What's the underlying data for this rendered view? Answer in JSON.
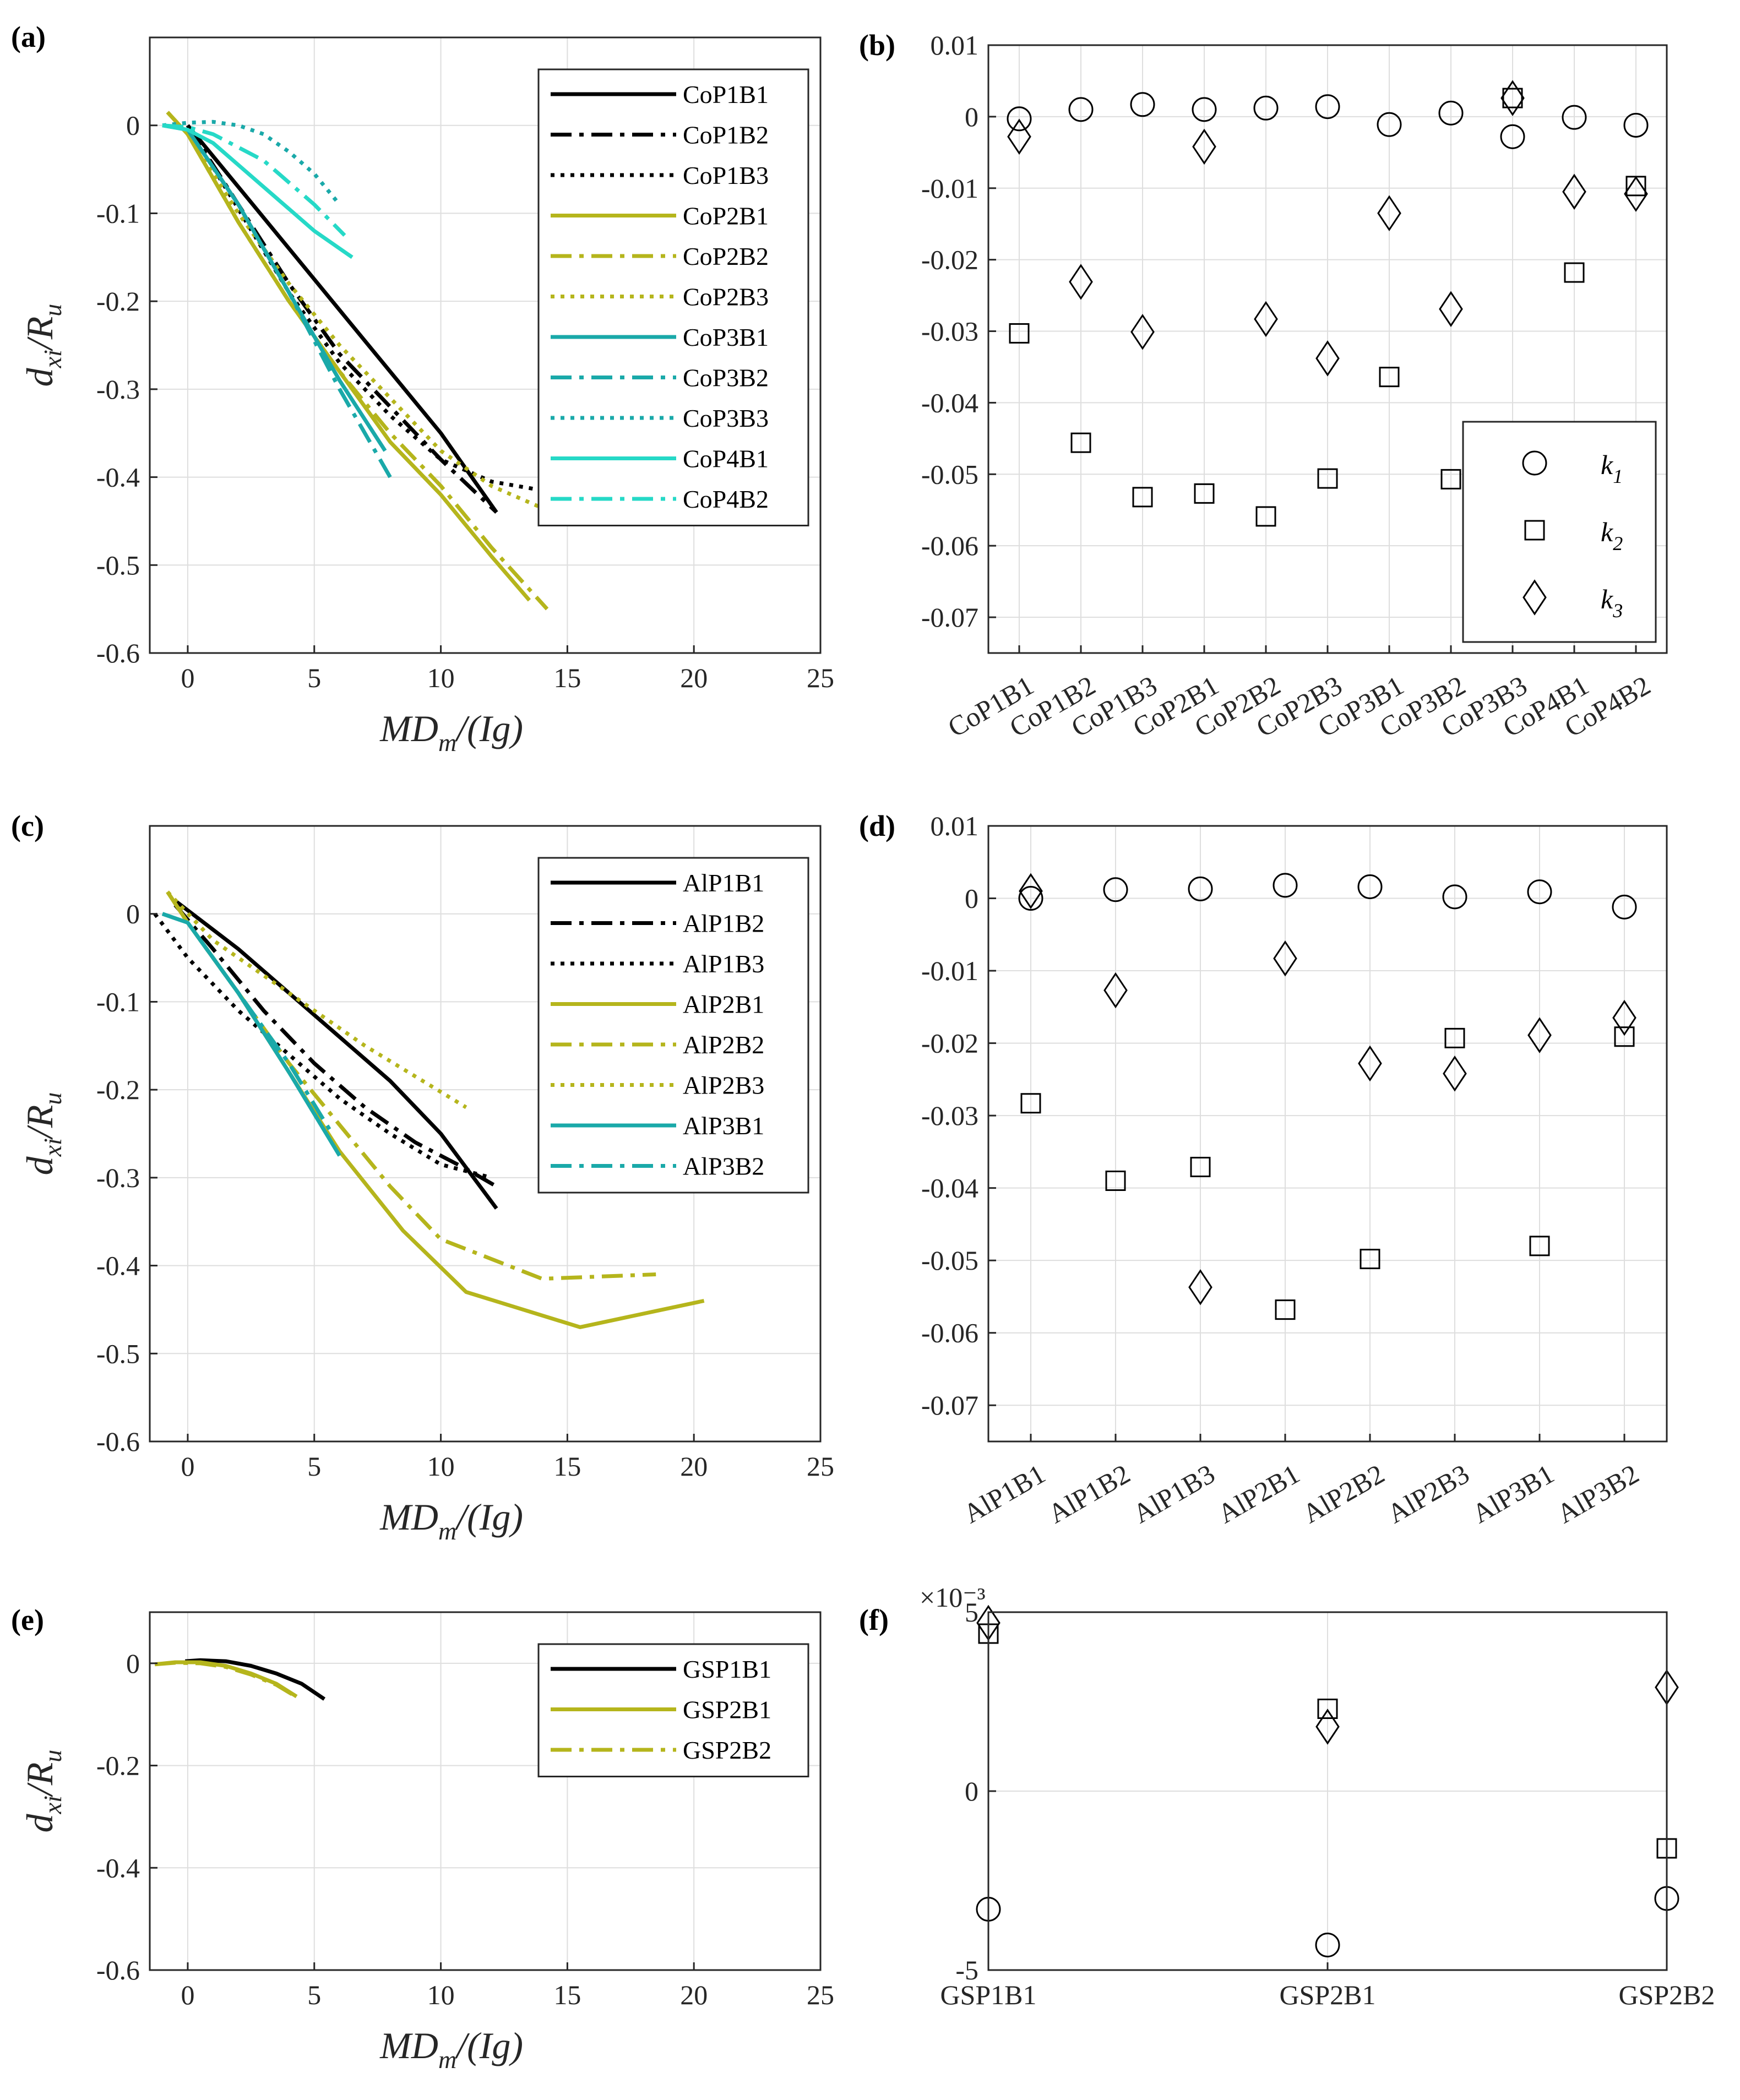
{
  "figure": {
    "panel_labels": [
      "(a)",
      "(b)",
      "(c)",
      "(d)",
      "(e)",
      "(f)"
    ],
    "y_label_left": {
      "main": "d",
      "sub": "xi",
      "sep": "/R",
      "sub2": "u"
    },
    "x_label_left": {
      "main": "MD",
      "sub": "m",
      "rest": "/(Ig)"
    },
    "sci_exponent_label": "×10⁻³"
  },
  "colors": {
    "black": "#000000",
    "olive": "#b5b51c",
    "teal": "#1aa9a9",
    "cyan": "#26d9c7",
    "grid": "#dedede",
    "axis": "#262626"
  },
  "chart_data": [
    {
      "id": "a",
      "type": "line",
      "title": "(a)",
      "xlabel": "MD_m/(Ig)",
      "ylabel": "d_xi/R_u",
      "xlim": [
        -1.5,
        25
      ],
      "ylim": [
        -0.6,
        0.1
      ],
      "xticks": [
        0,
        5,
        10,
        15,
        20,
        25
      ],
      "yticks": [
        0,
        -0.1,
        -0.2,
        -0.3,
        -0.4,
        -0.5,
        -0.6
      ],
      "grid": true,
      "legend_position": "top-right",
      "series": [
        {
          "name": "CoP1B1",
          "color": "black",
          "dash": "solid",
          "x": [
            0,
            2,
            4,
            6,
            8,
            10,
            12.2
          ],
          "y": [
            0,
            -0.07,
            -0.14,
            -0.21,
            -0.28,
            -0.35,
            -0.44
          ]
        },
        {
          "name": "CoP1B2",
          "color": "black",
          "dash": "dashdot",
          "x": [
            0,
            2,
            4,
            6,
            8,
            10,
            12.2
          ],
          "y": [
            0,
            -0.09,
            -0.18,
            -0.26,
            -0.32,
            -0.38,
            -0.44
          ]
        },
        {
          "name": "CoP1B3",
          "color": "black",
          "dash": "dotted",
          "x": [
            0,
            2,
            4,
            6,
            8,
            10,
            12,
            14
          ],
          "y": [
            0,
            -0.095,
            -0.19,
            -0.27,
            -0.33,
            -0.38,
            -0.405,
            -0.415
          ]
        },
        {
          "name": "CoP2B1",
          "color": "olive",
          "dash": "solid",
          "x": [
            -0.8,
            0,
            2,
            4,
            6,
            8,
            10,
            12,
            13.5
          ],
          "y": [
            0.015,
            -0.01,
            -0.11,
            -0.2,
            -0.28,
            -0.36,
            -0.42,
            -0.49,
            -0.54
          ]
        },
        {
          "name": "CoP2B2",
          "color": "olive",
          "dash": "dashdot",
          "x": [
            -0.8,
            0,
            2,
            4,
            6,
            8,
            10,
            12,
            14.2
          ],
          "y": [
            0.015,
            -0.01,
            -0.11,
            -0.2,
            -0.28,
            -0.35,
            -0.41,
            -0.48,
            -0.55
          ]
        },
        {
          "name": "CoP2B3",
          "color": "olive",
          "dash": "dotted",
          "x": [
            -0.8,
            0,
            2,
            4,
            6,
            8,
            10,
            12,
            14
          ],
          "y": [
            0.015,
            -0.01,
            -0.1,
            -0.18,
            -0.25,
            -0.31,
            -0.37,
            -0.41,
            -0.435
          ]
        },
        {
          "name": "CoP3B1",
          "color": "teal",
          "dash": "solid",
          "x": [
            -1,
            0,
            2,
            4,
            6,
            7.8
          ],
          "y": [
            0,
            -0.005,
            -0.09,
            -0.19,
            -0.29,
            -0.37
          ]
        },
        {
          "name": "CoP3B2",
          "color": "teal",
          "dash": "dashdot",
          "x": [
            -1,
            0,
            2,
            4,
            6,
            8
          ],
          "y": [
            0,
            -0.005,
            -0.09,
            -0.19,
            -0.3,
            -0.4
          ]
        },
        {
          "name": "CoP3B3",
          "color": "teal",
          "dash": "dotted",
          "x": [
            -1,
            0,
            1,
            2,
            3,
            4,
            5,
            6
          ],
          "y": [
            0,
            0.003,
            0.004,
            0,
            -0.01,
            -0.03,
            -0.055,
            -0.09
          ]
        },
        {
          "name": "CoP4B1",
          "color": "cyan",
          "dash": "solid",
          "x": [
            -1,
            0,
            1,
            2,
            3,
            4,
            5,
            6.5
          ],
          "y": [
            0,
            -0.005,
            -0.02,
            -0.045,
            -0.07,
            -0.095,
            -0.12,
            -0.15
          ]
        },
        {
          "name": "CoP4B2",
          "color": "cyan",
          "dash": "dashdot",
          "x": [
            -1,
            0,
            1,
            2,
            3,
            4,
            5,
            6.2
          ],
          "y": [
            0,
            -0.002,
            -0.01,
            -0.025,
            -0.04,
            -0.065,
            -0.09,
            -0.125
          ]
        }
      ]
    },
    {
      "id": "b",
      "type": "scatter",
      "title": "(b)",
      "ylim": [
        -0.075,
        0.01
      ],
      "yticks": [
        0.01,
        0,
        -0.01,
        -0.02,
        -0.03,
        -0.04,
        -0.05,
        -0.06,
        -0.07
      ],
      "ytick_labels": [
        "0.01",
        "0",
        "-0.01",
        "-0.02",
        "-0.03",
        "-0.04",
        "-0.05",
        "-0.06",
        "-0.07"
      ],
      "categories": [
        "CoP1B1",
        "CoP1B2",
        "CoP1B3",
        "CoP2B1",
        "CoP2B2",
        "CoP2B3",
        "CoP3B1",
        "CoP3B2",
        "CoP3B3",
        "CoP4B1",
        "CoP4B2"
      ],
      "grid": true,
      "legend_position": "bottom-right",
      "series": [
        {
          "name": "k",
          "sub": "1",
          "marker": "circle",
          "values": [
            -0.0003,
            0.001,
            0.0017,
            0.001,
            0.0012,
            0.0014,
            -0.0011,
            0.0005,
            -0.0028,
            -0.0001,
            -0.0012
          ]
        },
        {
          "name": "k",
          "sub": "2",
          "marker": "square",
          "values": [
            -0.0303,
            -0.0456,
            -0.0532,
            -0.0527,
            -0.0559,
            -0.0506,
            -0.0364,
            -0.0507,
            0.0026,
            -0.0218,
            -0.0097
          ]
        },
        {
          "name": "k",
          "sub": "3",
          "marker": "diamond",
          "values": [
            -0.0028,
            -0.0231,
            -0.0301,
            -0.0042,
            -0.0283,
            -0.0338,
            -0.0135,
            -0.0269,
            0.0026,
            -0.0105,
            -0.0108
          ]
        }
      ]
    },
    {
      "id": "c",
      "type": "line",
      "title": "(c)",
      "xlabel": "MD_m/(Ig)",
      "ylabel": "d_xi/R_u",
      "xlim": [
        -1.5,
        25
      ],
      "ylim": [
        -0.6,
        0.1
      ],
      "xticks": [
        0,
        5,
        10,
        15,
        20,
        25
      ],
      "yticks": [
        0,
        -0.1,
        -0.2,
        -0.3,
        -0.4,
        -0.5,
        -0.6
      ],
      "grid": true,
      "legend_position": "top-right",
      "series": [
        {
          "name": "AlP1B1",
          "color": "black",
          "dash": "solid",
          "x": [
            -0.5,
            2,
            4,
            6,
            8,
            10,
            12.2
          ],
          "y": [
            0.015,
            -0.04,
            -0.09,
            -0.14,
            -0.19,
            -0.25,
            -0.335
          ]
        },
        {
          "name": "AlP1B2",
          "color": "black",
          "dash": "dashdot",
          "x": [
            -0.5,
            1,
            3,
            5,
            7,
            9,
            11,
            12.2
          ],
          "y": [
            0.01,
            -0.04,
            -0.11,
            -0.17,
            -0.22,
            -0.26,
            -0.29,
            -0.31
          ]
        },
        {
          "name": "AlP1B3",
          "color": "black",
          "dash": "dotted",
          "x": [
            -1.3,
            0,
            2,
            4,
            6,
            8,
            10,
            12
          ],
          "y": [
            0,
            -0.05,
            -0.11,
            -0.16,
            -0.21,
            -0.25,
            -0.285,
            -0.3
          ]
        },
        {
          "name": "AlP2B1",
          "color": "olive",
          "dash": "solid",
          "x": [
            -0.8,
            0,
            2,
            4,
            6,
            8.5,
            11,
            15.5,
            20.4
          ],
          "y": [
            0.025,
            -0.01,
            -0.09,
            -0.18,
            -0.27,
            -0.36,
            -0.43,
            -0.47,
            -0.44
          ]
        },
        {
          "name": "AlP2B2",
          "color": "olive",
          "dash": "dashdot",
          "x": [
            -0.8,
            0,
            2,
            4,
            6,
            8,
            10,
            14,
            18.5
          ],
          "y": [
            0.025,
            -0.01,
            -0.09,
            -0.17,
            -0.24,
            -0.31,
            -0.37,
            -0.415,
            -0.41
          ]
        },
        {
          "name": "AlP2B3",
          "color": "olive",
          "dash": "dotted",
          "x": [
            -0.8,
            1,
            3,
            5,
            7,
            9,
            11
          ],
          "y": [
            0.025,
            -0.03,
            -0.07,
            -0.11,
            -0.15,
            -0.185,
            -0.22
          ]
        },
        {
          "name": "AlP3B1",
          "color": "teal",
          "dash": "solid",
          "x": [
            -1,
            0,
            2,
            4,
            6
          ],
          "y": [
            0,
            -0.01,
            -0.09,
            -0.18,
            -0.275
          ]
        },
        {
          "name": "AlP3B2",
          "color": "teal",
          "dash": "dashdot",
          "x": [
            -1,
            0,
            2,
            4,
            5.6
          ],
          "y": [
            0,
            -0.01,
            -0.09,
            -0.17,
            -0.245
          ]
        }
      ]
    },
    {
      "id": "d",
      "type": "scatter",
      "title": "(d)",
      "ylim": [
        -0.075,
        0.01
      ],
      "yticks": [
        0.01,
        0,
        -0.01,
        -0.02,
        -0.03,
        -0.04,
        -0.05,
        -0.06,
        -0.07
      ],
      "ytick_labels": [
        "0.01",
        "0",
        "-0.01",
        "-0.02",
        "-0.03",
        "-0.04",
        "-0.05",
        "-0.06",
        "-0.07"
      ],
      "categories": [
        "AlP1B1",
        "AlP1B2",
        "AlP1B3",
        "AlP2B1",
        "AlP2B2",
        "AlP2B3",
        "AlP3B1",
        "AlP3B2"
      ],
      "grid": true,
      "series": [
        {
          "name": "k",
          "sub": "1",
          "marker": "circle",
          "values": [
            0,
            0.0012,
            0.0013,
            0.0018,
            0.0016,
            0.0002,
            0.0009,
            -0.0012
          ]
        },
        {
          "name": "k",
          "sub": "2",
          "marker": "square",
          "values": [
            -0.0283,
            -0.039,
            -0.0371,
            -0.0568,
            -0.0498,
            -0.0193,
            -0.048,
            -0.0191
          ]
        },
        {
          "name": "k",
          "sub": "3",
          "marker": "diamond",
          "values": [
            0.001,
            -0.0127,
            -0.0537,
            -0.0083,
            -0.0228,
            -0.0242,
            -0.0189,
            -0.0165
          ]
        }
      ]
    },
    {
      "id": "e",
      "type": "line",
      "title": "(e)",
      "xlabel": "MD_m/(Ig)",
      "ylabel": "d_xi/R_u",
      "xlim": [
        -1.5,
        25
      ],
      "ylim": [
        -0.6,
        0.1
      ],
      "xticks": [
        0,
        5,
        10,
        15,
        20,
        25
      ],
      "yticks": [
        0,
        -0.2,
        -0.4,
        -0.6
      ],
      "grid": true,
      "legend_position": "top-right",
      "series": [
        {
          "name": "GSP1B1",
          "color": "black",
          "dash": "solid",
          "x": [
            -0.1,
            0.5,
            1.5,
            2.5,
            3.5,
            4.5,
            5.4
          ],
          "y": [
            0.004,
            0.006,
            0.004,
            -0.005,
            -0.02,
            -0.04,
            -0.07
          ]
        },
        {
          "name": "GSP2B1",
          "color": "olive",
          "dash": "solid",
          "x": [
            -1.3,
            -0.5,
            0.5,
            1.5,
            2.5,
            3.5,
            4.3
          ],
          "y": [
            -0.002,
            0.002,
            0.002,
            -0.005,
            -0.02,
            -0.04,
            -0.065
          ]
        },
        {
          "name": "GSP2B2",
          "color": "olive",
          "dash": "dashdot",
          "x": [
            -1.3,
            -0.5,
            0.5,
            1.5,
            2.5,
            3.5,
            4.3
          ],
          "y": [
            -0.002,
            0.001,
            0,
            -0.007,
            -0.022,
            -0.042,
            -0.066
          ]
        }
      ]
    },
    {
      "id": "f",
      "type": "scatter",
      "title": "(f)",
      "ylim": [
        -0.005,
        0.005
      ],
      "yticks": [
        0.005,
        0,
        -0.005
      ],
      "ytick_labels": [
        "5",
        "0",
        "-5"
      ],
      "categories": [
        "GSP1B1",
        "GSP2B1",
        "GSP2B2"
      ],
      "grid": true,
      "series": [
        {
          "name": "k",
          "sub": "1",
          "marker": "circle",
          "values": [
            -0.0033,
            -0.0043,
            -0.003
          ]
        },
        {
          "name": "k",
          "sub": "2",
          "marker": "square",
          "values": [
            0.0044,
            0.0023,
            -0.0016
          ]
        },
        {
          "name": "k",
          "sub": "3",
          "marker": "diamond",
          "values": [
            0.0047,
            0.0018,
            0.0029
          ]
        }
      ]
    }
  ]
}
